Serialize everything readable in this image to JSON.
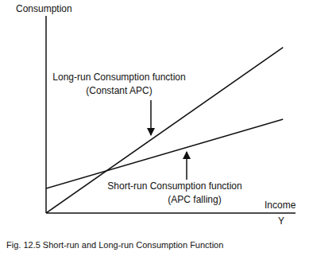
{
  "chart_data": {
    "type": "line",
    "title": "Fig. 12.5   Short-run and Long-run Consumption Function",
    "ylabel": "Consumption",
    "xlabel": "Income",
    "x_symbol": "Y",
    "x": [
      0,
      95
    ],
    "series": [
      {
        "name": "Long-run Consumption function",
        "color": "#111111",
        "values": [
          0,
          84
        ]
      },
      {
        "name": "Short-run Consumption function",
        "color": "#111111",
        "values": [
          12.5,
          47.6
        ]
      }
    ],
    "annotations": [
      "Long-run Consumption function",
      "(Constant APC)",
      "Short-run Consumption function",
      "(APC falling)"
    ],
    "xlim": [
      0,
      100
    ],
    "ylim": [
      0,
      100
    ],
    "tick_labels": false,
    "grid": false
  }
}
